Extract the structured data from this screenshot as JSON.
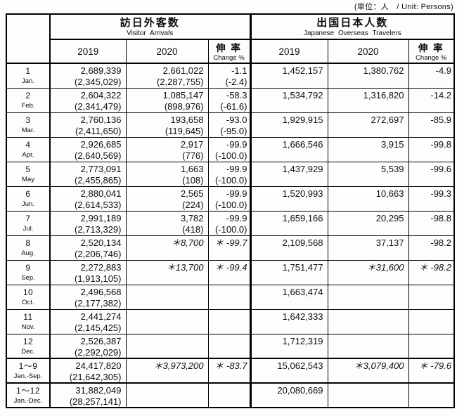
{
  "unit_note": "(単位：人　/ Unit: Persons)",
  "header": {
    "visitor": {
      "title_jp": "訪日外客数",
      "title_en": "Visitor Arrivals"
    },
    "travelers": {
      "title_jp": "出国日本人数",
      "title_en": "Japanese Overseas Travelers"
    },
    "col_2019": "2019",
    "col_2020": "2020",
    "change_jp": "伸 率",
    "change_en": "Change %"
  },
  "rows": [
    {
      "month": "1",
      "month_label": "Jan.",
      "summary": false,
      "cells": [
        {
          "main": "2,689,339",
          "sub": "(2,345,029)"
        },
        {
          "main": "2,661,022",
          "sub": "(2,287,755)"
        },
        {
          "main": "-1.1",
          "sub": "(-2.4)"
        },
        {
          "main": "1,452,157"
        },
        {
          "main": "1,380,762"
        },
        {
          "main": "-4.9"
        }
      ]
    },
    {
      "month": "2",
      "month_label": "Feb.",
      "summary": false,
      "cells": [
        {
          "main": "2,604,322",
          "sub": "(2,341,479)"
        },
        {
          "main": "1,085,147",
          "sub": "(898,976)"
        },
        {
          "main": "-58.3",
          "sub": "(-61.6)"
        },
        {
          "main": "1,534,792"
        },
        {
          "main": "1,316,820"
        },
        {
          "main": "-14.2"
        }
      ]
    },
    {
      "month": "3",
      "month_label": "Mar.",
      "summary": false,
      "cells": [
        {
          "main": "2,760,136",
          "sub": "(2,411,650)"
        },
        {
          "main": "193,658",
          "sub": "(119,645)"
        },
        {
          "main": "-93.0",
          "sub": "(-95.0)"
        },
        {
          "main": "1,929,915"
        },
        {
          "main": "272,697"
        },
        {
          "main": "-85.9"
        }
      ]
    },
    {
      "month": "4",
      "month_label": "Apr.",
      "summary": false,
      "cells": [
        {
          "main": "2,926,685",
          "sub": "(2,640,569)"
        },
        {
          "main": "2,917",
          "sub": "(776)"
        },
        {
          "main": "-99.9",
          "sub": "(-100.0)"
        },
        {
          "main": "1,666,546"
        },
        {
          "main": "3,915"
        },
        {
          "main": "-99.8"
        }
      ]
    },
    {
      "month": "5",
      "month_label": "May",
      "summary": false,
      "cells": [
        {
          "main": "2,773,091",
          "sub": "(2,455,865)"
        },
        {
          "main": "1,663",
          "sub": "(108)"
        },
        {
          "main": "-99.9",
          "sub": "(-100.0)"
        },
        {
          "main": "1,437,929"
        },
        {
          "main": "5,539"
        },
        {
          "main": "-99.6"
        }
      ]
    },
    {
      "month": "6",
      "month_label": "Jun.",
      "summary": false,
      "cells": [
        {
          "main": "2,880,041",
          "sub": "(2,614,533)"
        },
        {
          "main": "2,565",
          "sub": "(224)"
        },
        {
          "main": "-99.9",
          "sub": "(-100.0)"
        },
        {
          "main": "1,520,993"
        },
        {
          "main": "10,663"
        },
        {
          "main": "-99.3"
        }
      ]
    },
    {
      "month": "7",
      "month_label": "Jul.",
      "summary": false,
      "cells": [
        {
          "main": "2,991,189",
          "sub": "(2,713,329)"
        },
        {
          "main": "3,782",
          "sub": "(418)"
        },
        {
          "main": "-99.9",
          "sub": "(-100.0)"
        },
        {
          "main": "1,659,166"
        },
        {
          "main": "20,295"
        },
        {
          "main": "-98.8"
        }
      ]
    },
    {
      "month": "8",
      "month_label": "Aug.",
      "summary": false,
      "cells": [
        {
          "main": "2,520,134",
          "sub": "(2,206,746)"
        },
        {
          "main": "＊8,700",
          "star": true
        },
        {
          "main": "＊ -99.7",
          "star": true
        },
        {
          "main": "2,109,568"
        },
        {
          "main": "37,137"
        },
        {
          "main": "-98.2"
        }
      ]
    },
    {
      "month": "9",
      "month_label": "Sep.",
      "summary": false,
      "cells": [
        {
          "main": "2,272,883",
          "sub": "(1,913,105)"
        },
        {
          "main": "＊13,700",
          "star": true
        },
        {
          "main": "＊ -99.4",
          "star": true
        },
        {
          "main": "1,751,477"
        },
        {
          "main": "＊31,600",
          "star": true
        },
        {
          "main": "＊ -98.2",
          "star": true
        }
      ]
    },
    {
      "month": "10",
      "month_label": "Oct.",
      "summary": false,
      "cells": [
        {
          "main": "2,496,568",
          "sub": "(2,177,382)"
        },
        {
          "main": ""
        },
        {
          "main": ""
        },
        {
          "main": "1,663,474"
        },
        {
          "main": ""
        },
        {
          "main": ""
        }
      ]
    },
    {
      "month": "11",
      "month_label": "Nov.",
      "summary": false,
      "cells": [
        {
          "main": "2,441,274",
          "sub": "(2,145,425)"
        },
        {
          "main": ""
        },
        {
          "main": ""
        },
        {
          "main": "1,642,333"
        },
        {
          "main": ""
        },
        {
          "main": ""
        }
      ]
    },
    {
      "month": "12",
      "month_label": "Dec.",
      "summary": false,
      "cells": [
        {
          "main": "2,526,387",
          "sub": "(2,292,029)"
        },
        {
          "main": ""
        },
        {
          "main": ""
        },
        {
          "main": "1,712,319"
        },
        {
          "main": ""
        },
        {
          "main": ""
        }
      ]
    },
    {
      "month": "1～9",
      "month_label": "Jan.-Sep.",
      "summary": true,
      "cells": [
        {
          "main": "24,417,820",
          "sub": "(21,642,305)"
        },
        {
          "main": "＊3,973,200",
          "star": true
        },
        {
          "main": "＊ -83.7",
          "star": true
        },
        {
          "main": "15,062,543"
        },
        {
          "main": "＊3,079,400",
          "star": true
        },
        {
          "main": "＊ -79.6",
          "star": true
        }
      ]
    },
    {
      "month": "1～12",
      "month_label": "Jan.-Dec.",
      "summary": true,
      "cells": [
        {
          "main": "31,882,049",
          "sub": "(28,257,141)"
        },
        {
          "main": ""
        },
        {
          "main": ""
        },
        {
          "main": "20,080,669"
        },
        {
          "main": ""
        },
        {
          "main": ""
        }
      ]
    }
  ]
}
